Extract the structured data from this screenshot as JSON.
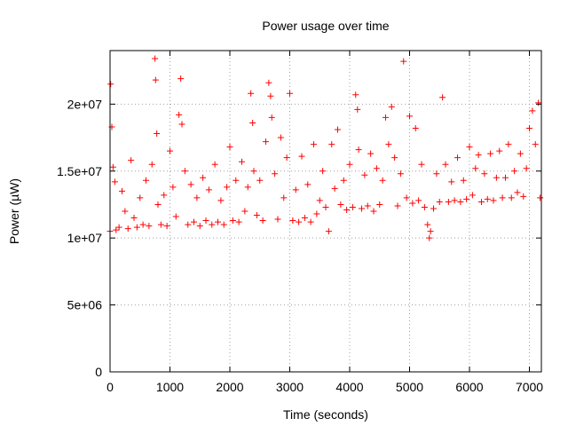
{
  "chart_data": {
    "type": "scatter",
    "title": "Power usage over time",
    "xlabel": "Time (seconds)",
    "ylabel": "Power (µW)",
    "xlim": [
      0,
      7200
    ],
    "ylim": [
      0,
      24000000
    ],
    "xticks": [
      {
        "value": 0,
        "label": "0"
      },
      {
        "value": 1000,
        "label": "1000"
      },
      {
        "value": 2000,
        "label": "2000"
      },
      {
        "value": 3000,
        "label": "3000"
      },
      {
        "value": 4000,
        "label": "4000"
      },
      {
        "value": 5000,
        "label": "5000"
      },
      {
        "value": 6000,
        "label": "6000"
      },
      {
        "value": 7000,
        "label": "7000"
      }
    ],
    "yticks": [
      {
        "value": 0,
        "label": "0"
      },
      {
        "value": 5000000,
        "label": "5e+06"
      },
      {
        "value": 10000000,
        "label": "1e+07"
      },
      {
        "value": 15000000,
        "label": "1.5e+07"
      },
      {
        "value": 20000000,
        "label": "2e+07"
      }
    ],
    "grid": true,
    "marker": "+",
    "color": "#ff0000",
    "series": [
      {
        "points": [
          [
            0,
            10500000
          ],
          [
            10,
            21500000
          ],
          [
            30,
            18300000
          ],
          [
            50,
            15300000
          ],
          [
            80,
            14200000
          ],
          [
            100,
            10600000
          ],
          [
            150,
            10800000
          ],
          [
            200,
            13500000
          ],
          [
            250,
            12000000
          ],
          [
            300,
            10700000
          ],
          [
            350,
            15800000
          ],
          [
            400,
            11500000
          ],
          [
            450,
            10800000
          ],
          [
            500,
            13000000
          ],
          [
            550,
            11000000
          ],
          [
            600,
            14300000
          ],
          [
            650,
            10900000
          ],
          [
            700,
            15500000
          ],
          [
            750,
            23400000
          ],
          [
            760,
            21800000
          ],
          [
            780,
            17800000
          ],
          [
            800,
            12500000
          ],
          [
            850,
            11000000
          ],
          [
            900,
            13200000
          ],
          [
            950,
            10900000
          ],
          [
            1000,
            16500000
          ],
          [
            1050,
            13800000
          ],
          [
            1100,
            11600000
          ],
          [
            1150,
            19200000
          ],
          [
            1180,
            21900000
          ],
          [
            1200,
            18500000
          ],
          [
            1250,
            15000000
          ],
          [
            1300,
            11000000
          ],
          [
            1350,
            14000000
          ],
          [
            1400,
            11200000
          ],
          [
            1450,
            13000000
          ],
          [
            1500,
            10900000
          ],
          [
            1550,
            14500000
          ],
          [
            1600,
            11300000
          ],
          [
            1650,
            13600000
          ],
          [
            1700,
            11000000
          ],
          [
            1750,
            15500000
          ],
          [
            1800,
            11200000
          ],
          [
            1850,
            12800000
          ],
          [
            1900,
            11000000
          ],
          [
            1950,
            13800000
          ],
          [
            2000,
            16800000
          ],
          [
            2050,
            11300000
          ],
          [
            2100,
            14300000
          ],
          [
            2150,
            11200000
          ],
          [
            2200,
            15700000
          ],
          [
            2250,
            12000000
          ],
          [
            2300,
            13800000
          ],
          [
            2350,
            20800000
          ],
          [
            2380,
            18600000
          ],
          [
            2400,
            15000000
          ],
          [
            2450,
            11700000
          ],
          [
            2500,
            14300000
          ],
          [
            2550,
            11300000
          ],
          [
            2600,
            17200000
          ],
          [
            2650,
            21600000
          ],
          [
            2680,
            20600000
          ],
          [
            2700,
            19000000
          ],
          [
            2750,
            14800000
          ],
          [
            2800,
            11400000
          ],
          [
            2850,
            17500000
          ],
          [
            2900,
            13000000
          ],
          [
            2950,
            16000000
          ],
          [
            3000,
            20800000
          ],
          [
            3050,
            11300000
          ],
          [
            3100,
            13600000
          ],
          [
            3150,
            11200000
          ],
          [
            3200,
            16100000
          ],
          [
            3250,
            11500000
          ],
          [
            3300,
            14000000
          ],
          [
            3350,
            11200000
          ],
          [
            3400,
            17000000
          ],
          [
            3450,
            11800000
          ],
          [
            3500,
            12800000
          ],
          [
            3550,
            15000000
          ],
          [
            3600,
            12300000
          ],
          [
            3650,
            10500000
          ],
          [
            3700,
            17000000
          ],
          [
            3750,
            13700000
          ],
          [
            3800,
            18100000
          ],
          [
            3850,
            12500000
          ],
          [
            3900,
            14300000
          ],
          [
            3950,
            12100000
          ],
          [
            4000,
            15500000
          ],
          [
            4050,
            12300000
          ],
          [
            4100,
            20700000
          ],
          [
            4130,
            19600000
          ],
          [
            4150,
            16600000
          ],
          [
            4200,
            12200000
          ],
          [
            4250,
            14700000
          ],
          [
            4300,
            12400000
          ],
          [
            4350,
            16300000
          ],
          [
            4400,
            12000000
          ],
          [
            4450,
            15200000
          ],
          [
            4500,
            12500000
          ],
          [
            4550,
            14300000
          ],
          [
            4600,
            19000000
          ],
          [
            4650,
            17000000
          ],
          [
            4700,
            19800000
          ],
          [
            4750,
            16000000
          ],
          [
            4800,
            12400000
          ],
          [
            4850,
            14800000
          ],
          [
            4900,
            23200000
          ],
          [
            4950,
            13000000
          ],
          [
            5000,
            19100000
          ],
          [
            5050,
            12600000
          ],
          [
            5100,
            18200000
          ],
          [
            5150,
            12800000
          ],
          [
            5200,
            15500000
          ],
          [
            5250,
            12300000
          ],
          [
            5300,
            11000000
          ],
          [
            5330,
            10000000
          ],
          [
            5350,
            10500000
          ],
          [
            5400,
            12200000
          ],
          [
            5450,
            14800000
          ],
          [
            5500,
            12700000
          ],
          [
            5550,
            20500000
          ],
          [
            5600,
            15500000
          ],
          [
            5650,
            12700000
          ],
          [
            5700,
            14200000
          ],
          [
            5750,
            12800000
          ],
          [
            5800,
            16000000
          ],
          [
            5850,
            12700000
          ],
          [
            5900,
            14300000
          ],
          [
            5950,
            12900000
          ],
          [
            6000,
            16800000
          ],
          [
            6050,
            13200000
          ],
          [
            6100,
            15200000
          ],
          [
            6150,
            16200000
          ],
          [
            6200,
            12700000
          ],
          [
            6250,
            14800000
          ],
          [
            6300,
            12900000
          ],
          [
            6350,
            16300000
          ],
          [
            6400,
            12800000
          ],
          [
            6450,
            14500000
          ],
          [
            6500,
            16500000
          ],
          [
            6550,
            13000000
          ],
          [
            6600,
            14500000
          ],
          [
            6650,
            17000000
          ],
          [
            6700,
            13000000
          ],
          [
            6750,
            15000000
          ],
          [
            6800,
            13400000
          ],
          [
            6850,
            16300000
          ],
          [
            6900,
            13100000
          ],
          [
            6950,
            15200000
          ],
          [
            7000,
            18200000
          ],
          [
            7050,
            19500000
          ],
          [
            7100,
            17000000
          ],
          [
            7150,
            20100000
          ],
          [
            7180,
            13000000
          ]
        ]
      }
    ]
  }
}
